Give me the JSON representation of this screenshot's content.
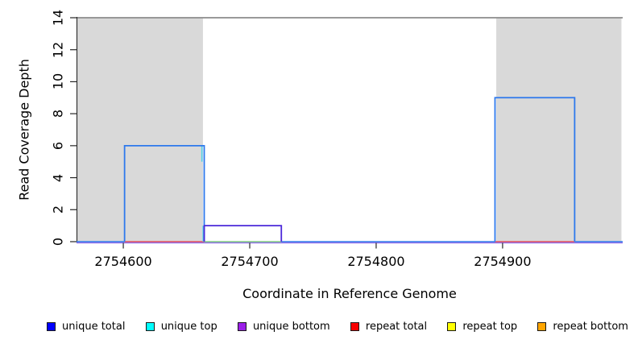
{
  "chart_data": {
    "type": "area-step",
    "xlabel": "Coordinate in Reference Genome",
    "ylabel": "Read Coverage Depth",
    "xlim": [
      2754563,
      2754995
    ],
    "ylim": [
      0,
      14
    ],
    "x_ticks": [
      2754600,
      2754700,
      2754800,
      2754900
    ],
    "y_ticks": [
      0,
      2,
      4,
      6,
      8,
      10,
      12,
      14
    ],
    "clip_line_y": 14,
    "repeat_regions": [
      {
        "start": 2754563,
        "end": 2754663
      },
      {
        "start": 2754895,
        "end": 2754994
      }
    ],
    "series": [
      {
        "name": "unique total",
        "line_color": "#2e79ec",
        "segments": [
          {
            "start": 2754601,
            "end": 2754664,
            "value": 6
          },
          {
            "start": 2754894,
            "end": 2754957,
            "value": 9
          }
        ]
      },
      {
        "name": "unique bottom",
        "line_color": "#4b28d9",
        "segments": [
          {
            "start": 2754664,
            "end": 2754725,
            "value": 1
          }
        ]
      }
    ],
    "unique_top_marks": [
      {
        "x": 2754663,
        "from": 6,
        "to": 5
      },
      {
        "x": 2754664,
        "from": 1,
        "to": 0
      }
    ],
    "zero_line_segments": [
      {
        "start": 2754563,
        "end": 2754601,
        "color": "#2e79ec"
      },
      {
        "start": 2754601,
        "end": 2754664,
        "color": "#e14b5a"
      },
      {
        "start": 2754664,
        "end": 2754725,
        "color": "#7dc87f"
      },
      {
        "start": 2754725,
        "end": 2754894,
        "color": "#2e79ec"
      },
      {
        "start": 2754894,
        "end": 2754957,
        "color": "#e14b5a"
      },
      {
        "start": 2754957,
        "end": 2754995,
        "color": "#2e79ec"
      }
    ],
    "zero_underline_color": "#8a66e8",
    "colors": {
      "repeat_region_fill": "#d9d9d9",
      "clip_line": "#8c8c8c",
      "axis": "#262626",
      "unique_top": "#53d3e8"
    }
  },
  "legend": {
    "items": [
      {
        "label": "unique total",
        "color": "#0000ff"
      },
      {
        "label": "unique top",
        "color": "#00ffff"
      },
      {
        "label": "unique bottom",
        "color": "#9b1fe8"
      },
      {
        "label": "repeat total",
        "color": "#f80000"
      },
      {
        "label": "repeat top",
        "color": "#ffff00"
      },
      {
        "label": "repeat bottom",
        "color": "#ffa500"
      }
    ]
  }
}
